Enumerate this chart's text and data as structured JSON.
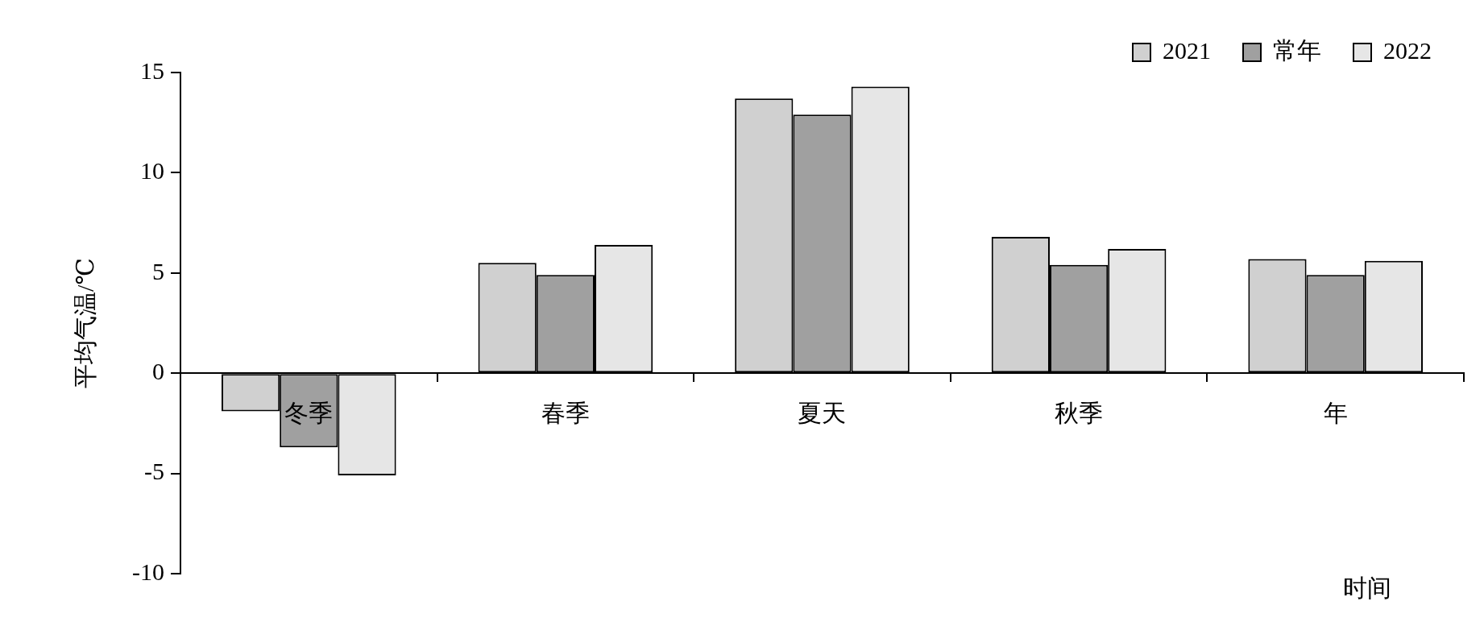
{
  "chart_data": {
    "type": "bar",
    "xlabel": "时间",
    "ylabel": "平均气温/℃",
    "categories": [
      "冬季",
      "春季",
      "夏天",
      "秋季",
      "年"
    ],
    "series": [
      {
        "name": "2021",
        "color": "#d0d0d0",
        "values": [
          -1.9,
          5.5,
          13.7,
          6.8,
          5.7
        ]
      },
      {
        "name": "常年",
        "color": "#a0a0a0",
        "values": [
          -3.7,
          4.9,
          12.9,
          5.4,
          4.9
        ]
      },
      {
        "name": "2022",
        "color": "#e6e6e6",
        "values": [
          -5.1,
          6.4,
          14.3,
          6.2,
          5.6
        ]
      }
    ],
    "ylim": [
      -10,
      15
    ],
    "yticks": [
      -10,
      -5,
      0,
      5,
      10,
      15
    ],
    "grid": false,
    "legend": "top right"
  }
}
